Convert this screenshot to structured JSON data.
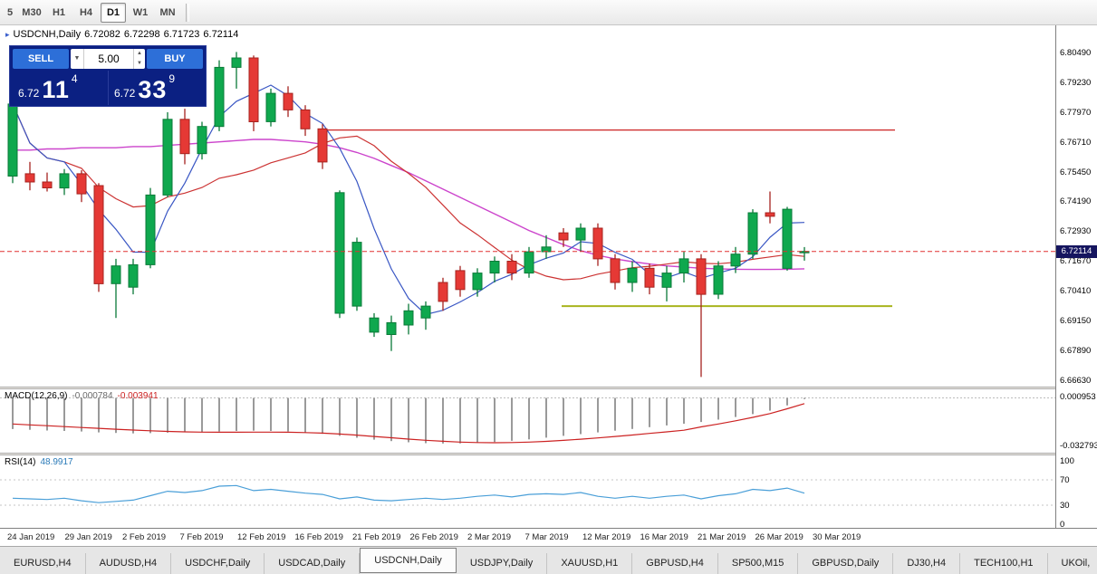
{
  "toolbar": {
    "timeframes": [
      "5",
      "M30",
      "H1",
      "H4",
      "D1",
      "W1",
      "MN"
    ],
    "active_timeframe": "D1"
  },
  "chart_header": {
    "symbol": "USDCNH,Daily",
    "open": "6.72082",
    "high": "6.72298",
    "low": "6.71723",
    "close": "6.72114"
  },
  "trade_panel": {
    "sell_label": "SELL",
    "buy_label": "BUY",
    "volume": "5.00",
    "sell_price_big": "6.72",
    "sell_price_pips": "11",
    "sell_price_sup": "4",
    "buy_price_big": "6.72",
    "buy_price_pips": "33",
    "buy_price_sup": "9"
  },
  "indicators": {
    "macd": {
      "name": "MACD(12,26,9)",
      "value_main": "-0.000784",
      "value_signal": "-0.003941",
      "axis_top": "0.000953",
      "axis_bottom": "-0.032793"
    },
    "rsi": {
      "name": "RSI(14)",
      "value": "48.9917",
      "levels": [
        "100",
        "70",
        "30",
        "0"
      ]
    }
  },
  "price_axis": {
    "labels": [
      "6.80490",
      "6.79230",
      "6.77970",
      "6.76710",
      "6.75450",
      "6.74190",
      "6.72930",
      "6.71670",
      "6.70410",
      "6.69150",
      "6.67890",
      "6.66630"
    ],
    "current_badge": "6.72114"
  },
  "date_axis": {
    "labels": [
      "24 Jan 2019",
      "29 Jan 2019",
      "2 Feb 2019",
      "7 Feb 2019",
      "12 Feb 2019",
      "16 Feb 2019",
      "21 Feb 2019",
      "26 Feb 2019",
      "2 Mar 2019",
      "7 Mar 2019",
      "12 Mar 2019",
      "16 Mar 2019",
      "21 Mar 2019",
      "26 Mar 2019",
      "30 Mar 2019"
    ],
    "active_chart": "USDCNH,Daily"
  },
  "tabs": {
    "items": [
      "EURUSD,H4",
      "AUDUSD,H4",
      "USDCHF,Daily",
      "USDCAD,Daily",
      "USDCNH,Daily",
      "USDJPY,Daily",
      "XAUUSD,H1",
      "GBPUSD,H4",
      "SP500,M15",
      "GBPUSD,Daily",
      "DJ30,H4",
      "TECH100,H1",
      "UKOil,"
    ],
    "active": "USDCNH,Daily"
  },
  "colors": {
    "up": "#0fa84e",
    "up_dark": "#0a7a38",
    "down": "#e53935",
    "down_dark": "#a6231f",
    "ma_fast": "#3a57c4",
    "ma_mid": "#cc3333",
    "ma_slow": "#cc44cc",
    "resistance": "#cc2222",
    "support": "#a8b41e",
    "price_line": "#e03030",
    "macd_hist": "#9a9a9a",
    "macd_signal": "#cc2222",
    "rsi_line": "#4a9fd8",
    "panel_navy": "#0b2082",
    "button_blue": "#2d6fd8",
    "badge_bg": "#15155f"
  },
  "chart_data": {
    "type": "candlestick",
    "title": "USDCNH,Daily",
    "symbol": "USDCNH",
    "timeframe": "Daily",
    "ohlc_current": {
      "open": 6.72082,
      "high": 6.72298,
      "low": 6.71723,
      "close": 6.72114
    },
    "y_axis_labels": [
      6.8049,
      6.7923,
      6.7797,
      6.7671,
      6.7545,
      6.7419,
      6.7293,
      6.7167,
      6.7041,
      6.6915,
      6.6789,
      6.6663
    ],
    "x_axis_labels": [
      "24 Jan 2019",
      "29 Jan 2019",
      "2 Feb 2019",
      "7 Feb 2019",
      "12 Feb 2019",
      "16 Feb 2019",
      "21 Feb 2019",
      "26 Feb 2019",
      "2 Mar 2019",
      "7 Mar 2019",
      "12 Mar 2019",
      "16 Mar 2019",
      "21 Mar 2019",
      "26 Mar 2019",
      "30 Mar 2019"
    ],
    "candles": [
      [
        6.753,
        6.786,
        6.75,
        6.7835
      ],
      [
        6.754,
        6.759,
        6.747,
        6.7505
      ],
      [
        6.7505,
        6.7545,
        6.7465,
        6.748
      ],
      [
        6.748,
        6.756,
        6.745,
        6.754
      ],
      [
        6.754,
        6.7555,
        6.742,
        6.7455
      ],
      [
        6.749,
        6.75,
        6.704,
        6.7075
      ],
      [
        6.7075,
        6.718,
        6.693,
        6.715
      ],
      [
        6.706,
        6.718,
        6.703,
        6.7155
      ],
      [
        6.7155,
        6.748,
        6.714,
        6.745
      ],
      [
        6.745,
        6.78,
        6.744,
        6.777
      ],
      [
        6.777,
        6.7815,
        6.758,
        6.7625
      ],
      [
        6.7625,
        6.776,
        6.76,
        6.774
      ],
      [
        6.774,
        6.802,
        6.772,
        6.799
      ],
      [
        6.799,
        6.8055,
        6.79,
        6.803
      ],
      [
        6.803,
        6.804,
        6.772,
        6.776
      ],
      [
        6.776,
        6.79,
        6.774,
        6.788
      ],
      [
        6.788,
        6.791,
        6.778,
        6.781
      ],
      [
        6.781,
        6.783,
        6.77,
        6.773
      ],
      [
        6.773,
        6.775,
        6.756,
        6.759
      ],
      [
        6.695,
        6.747,
        6.693,
        6.746
      ],
      [
        6.698,
        6.727,
        6.696,
        6.725
      ],
      [
        6.687,
        6.695,
        6.685,
        6.693
      ],
      [
        6.686,
        6.694,
        6.679,
        6.691
      ],
      [
        6.69,
        6.699,
        6.686,
        6.696
      ],
      [
        6.693,
        6.7,
        6.688,
        6.698
      ],
      [
        6.708,
        6.71,
        6.696,
        6.7
      ],
      [
        6.713,
        6.715,
        6.702,
        6.705
      ],
      [
        6.705,
        6.714,
        6.702,
        6.712
      ],
      [
        6.712,
        6.719,
        6.708,
        6.717
      ],
      [
        6.717,
        6.72,
        6.709,
        6.712
      ],
      [
        6.712,
        6.723,
        6.71,
        6.721
      ],
      [
        6.721,
        6.728,
        6.718,
        6.723
      ],
      [
        6.729,
        6.731,
        6.723,
        6.726
      ],
      [
        6.726,
        6.733,
        6.721,
        6.731
      ],
      [
        6.731,
        6.733,
        6.715,
        6.718
      ],
      [
        6.718,
        6.72,
        6.705,
        6.708
      ],
      [
        6.708,
        6.717,
        6.704,
        6.714
      ],
      [
        6.714,
        6.716,
        6.703,
        6.706
      ],
      [
        6.706,
        6.715,
        6.7,
        6.712
      ],
      [
        6.712,
        6.721,
        6.708,
        6.718
      ],
      [
        6.718,
        6.72,
        6.668,
        6.703
      ],
      [
        6.703,
        6.717,
        6.701,
        6.715
      ],
      [
        6.715,
        6.723,
        6.712,
        6.72
      ],
      [
        6.72,
        6.739,
        6.718,
        6.7375
      ],
      [
        6.7375,
        6.7465,
        6.733,
        6.736
      ],
      [
        6.714,
        6.74,
        6.713,
        6.739
      ],
      [
        6.72082,
        6.72298,
        6.71723,
        6.72114
      ]
    ],
    "ma_fast_window": 4,
    "ma_mid_window": 13,
    "ma_slow_magenta": [
      6.764,
      6.764,
      6.7645,
      6.7645,
      6.765,
      6.765,
      6.765,
      6.7655,
      6.7655,
      6.766,
      6.7665,
      6.767,
      6.7675,
      6.768,
      6.7685,
      6.7685,
      6.768,
      6.7675,
      6.7665,
      6.765,
      6.763,
      6.7605,
      6.7575,
      6.7545,
      6.751,
      6.7475,
      6.744,
      6.7405,
      6.737,
      6.7335,
      6.73,
      6.727,
      6.724,
      6.7215,
      6.7195,
      6.718,
      6.7168,
      6.7158,
      6.715,
      6.7145,
      6.714,
      6.7138,
      6.7136,
      6.7135,
      6.7135,
      6.7136,
      6.7138
    ],
    "overlays": {
      "resistance_price": 6.7725,
      "support_price": 6.698,
      "current_price": 6.72114
    },
    "macd": {
      "params": [
        12,
        26,
        9
      ],
      "hist": [
        -0.0215,
        -0.022,
        -0.0225,
        -0.0228,
        -0.0232,
        -0.0238,
        -0.0242,
        -0.0245,
        -0.0243,
        -0.024,
        -0.0237,
        -0.0235,
        -0.0232,
        -0.0228,
        -0.0226,
        -0.0228,
        -0.0232,
        -0.0238,
        -0.0248,
        -0.0262,
        -0.0275,
        -0.0288,
        -0.0298,
        -0.0306,
        -0.0312,
        -0.0315,
        -0.0314,
        -0.031,
        -0.0304,
        -0.0296,
        -0.0286,
        -0.0274,
        -0.0262,
        -0.025,
        -0.0238,
        -0.0226,
        -0.0214,
        -0.0202,
        -0.019,
        -0.0178,
        -0.0166,
        -0.015,
        -0.0132,
        -0.0112,
        -0.0088,
        -0.0052,
        -0.0008
      ],
      "signal": [
        -0.018,
        -0.0186,
        -0.0192,
        -0.0198,
        -0.0204,
        -0.021,
        -0.0216,
        -0.0222,
        -0.0227,
        -0.0231,
        -0.0234,
        -0.0236,
        -0.0237,
        -0.0237,
        -0.0236,
        -0.0236,
        -0.0237,
        -0.0239,
        -0.0243,
        -0.0249,
        -0.0257,
        -0.0266,
        -0.0275,
        -0.0284,
        -0.0292,
        -0.0299,
        -0.0305,
        -0.0308,
        -0.0309,
        -0.0308,
        -0.0305,
        -0.03,
        -0.0293,
        -0.0285,
        -0.0276,
        -0.0266,
        -0.0256,
        -0.0245,
        -0.0234,
        -0.0223,
        -0.02,
        -0.018,
        -0.0158,
        -0.0134,
        -0.0108,
        -0.0075,
        -0.0039
      ],
      "y_range": [
        0.000953,
        -0.032793
      ]
    },
    "rsi": {
      "period": 14,
      "values": [
        41,
        40,
        39,
        41,
        37,
        34,
        36,
        38,
        45,
        52,
        50,
        53,
        60,
        61,
        53,
        55,
        52,
        49,
        47,
        40,
        43,
        38,
        37,
        39,
        41,
        39,
        41,
        44,
        46,
        43,
        47,
        48,
        47,
        50,
        44,
        41,
        44,
        41,
        44,
        46,
        40,
        45,
        48,
        55,
        53,
        57,
        49
      ],
      "levels": [
        70,
        30
      ],
      "y_range": [
        0,
        100
      ]
    }
  }
}
